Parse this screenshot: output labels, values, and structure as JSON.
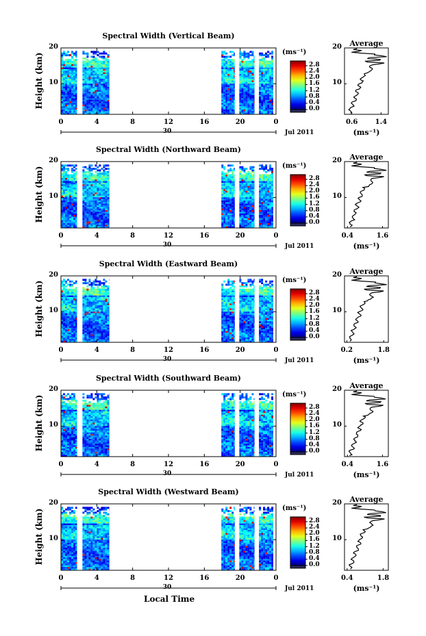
{
  "figure": {
    "xlabel_bottom": "Local Time",
    "date_label": "Jul 2011",
    "day_label": "30",
    "x_ticks": [
      "0",
      "4",
      "8",
      "12",
      "16",
      "20",
      "0"
    ],
    "y_ticks": [
      "20",
      "10"
    ],
    "ylabel": "Height (km)",
    "colorbar_unit": "(ms⁻¹)",
    "colorbar_ticks": [
      "2.8",
      "2.4",
      "2.0",
      "1.6",
      "1.2",
      "0.8",
      "0.4",
      "0.0"
    ],
    "avg_title": "Average",
    "avg_unit": "(ms⁻¹)"
  },
  "chart_data": [
    {
      "type": "heatmap",
      "title": "Spectral Width (Vertical Beam)",
      "xlabel": "Local Time",
      "ylabel": "Height (km)",
      "xlim": [
        0,
        24
      ],
      "ylim": [
        1.5,
        20
      ],
      "clim": [
        0.0,
        3.0
      ],
      "data_time_ranges_h": [
        [
          0,
          1.8
        ],
        [
          2.4,
          5.4
        ],
        [
          17.9,
          19.4
        ],
        [
          19.9,
          21.6
        ],
        [
          22.1,
          23.7
        ]
      ],
      "avg_profile": {
        "xticks": [
          "0.6",
          "1.4"
        ],
        "xlim": [
          0.4,
          1.6
        ],
        "ylim": [
          1.5,
          20
        ]
      }
    },
    {
      "type": "heatmap",
      "title": "Spectral Width (Northward Beam)",
      "xlabel": "Local Time",
      "ylabel": "Height (km)",
      "xlim": [
        0,
        24
      ],
      "ylim": [
        1.5,
        20
      ],
      "clim": [
        0.0,
        3.0
      ],
      "data_time_ranges_h": [
        [
          0,
          1.8
        ],
        [
          2.4,
          5.4
        ],
        [
          17.9,
          19.4
        ],
        [
          19.9,
          21.6
        ],
        [
          22.1,
          23.7
        ]
      ],
      "avg_profile": {
        "xticks": [
          "0.4",
          "1.6"
        ],
        "xlim": [
          0.3,
          1.8
        ],
        "ylim": [
          1.5,
          20
        ]
      }
    },
    {
      "type": "heatmap",
      "title": "Spectral Width (Eastward Beam)",
      "xlabel": "Local Time",
      "ylabel": "Height (km)",
      "xlim": [
        0,
        24
      ],
      "ylim": [
        1.5,
        20
      ],
      "clim": [
        0.0,
        3.0
      ],
      "data_time_ranges_h": [
        [
          0,
          1.8
        ],
        [
          2.4,
          5.4
        ],
        [
          17.9,
          19.4
        ],
        [
          19.9,
          21.6
        ],
        [
          22.1,
          23.7
        ]
      ],
      "avg_profile": {
        "xticks": [
          "0.2",
          "1.8"
        ],
        "xlim": [
          0.1,
          2.0
        ],
        "ylim": [
          1.5,
          20
        ]
      }
    },
    {
      "type": "heatmap",
      "title": "Spectral Width (Southward Beam)",
      "xlabel": "Local Time",
      "ylabel": "Height (km)",
      "xlim": [
        0,
        24
      ],
      "ylim": [
        1.5,
        20
      ],
      "clim": [
        0.0,
        3.0
      ],
      "data_time_ranges_h": [
        [
          0,
          1.8
        ],
        [
          2.4,
          5.4
        ],
        [
          17.9,
          19.4
        ],
        [
          19.9,
          21.6
        ],
        [
          22.1,
          23.7
        ]
      ],
      "avg_profile": {
        "xticks": [
          "0.4",
          "1.6"
        ],
        "xlim": [
          0.3,
          1.8
        ],
        "ylim": [
          1.5,
          20
        ]
      }
    },
    {
      "type": "heatmap",
      "title": "Spectral Width (Westward Beam)",
      "xlabel": "Local Time",
      "ylabel": "Height (km)",
      "xlim": [
        0,
        24
      ],
      "ylim": [
        1.5,
        20
      ],
      "clim": [
        0.0,
        3.0
      ],
      "data_time_ranges_h": [
        [
          0,
          1.8
        ],
        [
          2.4,
          5.4
        ],
        [
          17.9,
          19.4
        ],
        [
          19.9,
          21.6
        ],
        [
          22.1,
          23.7
        ]
      ],
      "avg_profile": {
        "xticks": [
          "0.4",
          "1.8"
        ],
        "xlim": [
          0.3,
          2.0
        ],
        "ylim": [
          1.5,
          20
        ]
      }
    }
  ]
}
